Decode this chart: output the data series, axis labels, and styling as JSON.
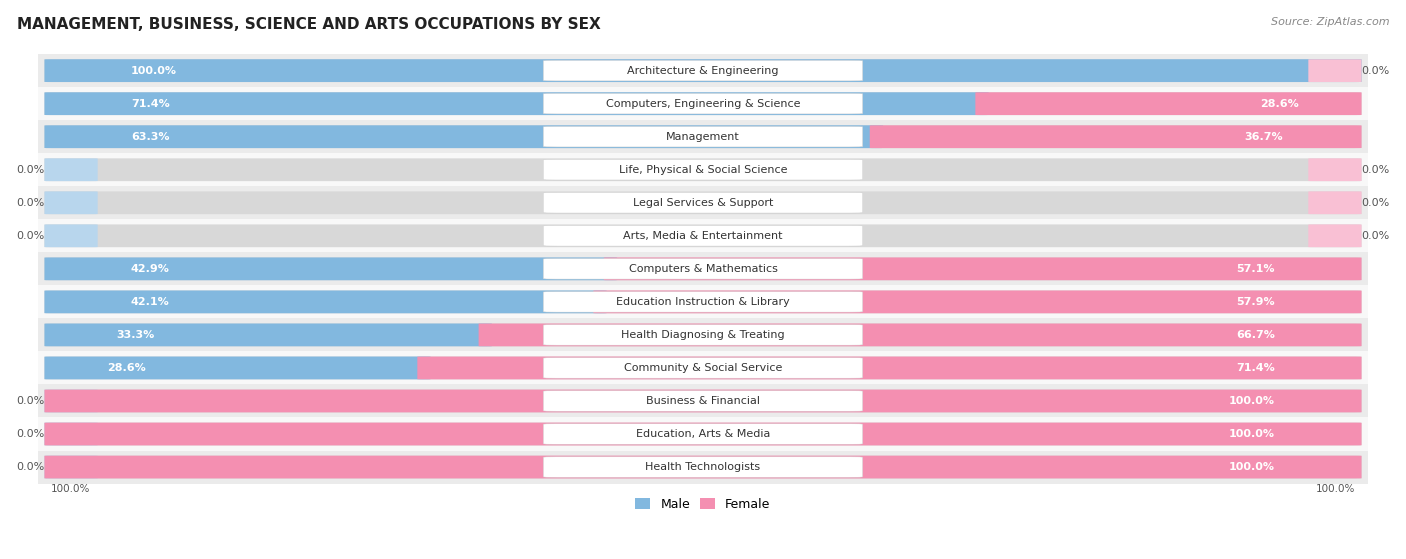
{
  "title": "MANAGEMENT, BUSINESS, SCIENCE AND ARTS OCCUPATIONS BY SEX",
  "source": "Source: ZipAtlas.com",
  "categories": [
    "Architecture & Engineering",
    "Computers, Engineering & Science",
    "Management",
    "Life, Physical & Social Science",
    "Legal Services & Support",
    "Arts, Media & Entertainment",
    "Computers & Mathematics",
    "Education Instruction & Library",
    "Health Diagnosing & Treating",
    "Community & Social Service",
    "Business & Financial",
    "Education, Arts & Media",
    "Health Technologists"
  ],
  "male": [
    100.0,
    71.4,
    63.3,
    0.0,
    0.0,
    0.0,
    42.9,
    42.1,
    33.3,
    28.6,
    0.0,
    0.0,
    0.0
  ],
  "female": [
    0.0,
    28.6,
    36.7,
    0.0,
    0.0,
    0.0,
    57.1,
    57.9,
    66.7,
    71.4,
    100.0,
    100.0,
    100.0
  ],
  "male_color": "#82b8df",
  "female_color": "#f48fb1",
  "male_stub_color": "#b8d6ed",
  "female_stub_color": "#f9c0d4",
  "row_bg_odd": "#ebebeb",
  "row_bg_even": "#f8f8f8",
  "title_fontsize": 11,
  "source_fontsize": 8,
  "label_fontsize": 8,
  "pct_fontsize": 8,
  "legend_fontsize": 9
}
